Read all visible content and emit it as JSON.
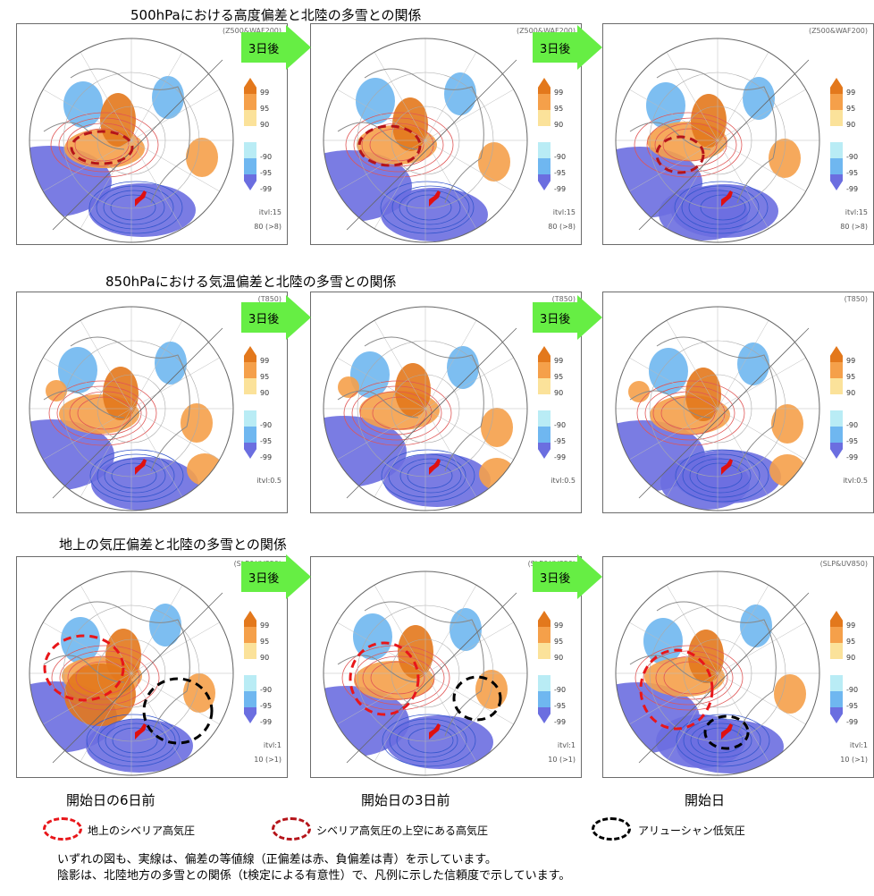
{
  "rows": [
    {
      "title": "500hPaにおける高度偏差と北陸の多雪との関係",
      "tag": "(Z500&WAF200)",
      "itvl": "itvl:15",
      "vec": "80 (>8)"
    },
    {
      "title": "850hPaにおける気温偏差と北陸の多雪との関係",
      "tag": "(T850)",
      "itvl": "itvl:0.5",
      "vec": ""
    },
    {
      "title": "地上の気圧偏差と北陸の多雪との関係",
      "tag": "(SLP&UV850)",
      "itvl": "itvl:1",
      "vec": "10 (>1)"
    }
  ],
  "arrow_label": "3日後",
  "legend_ticks": [
    "99",
    "95",
    "90",
    "-90",
    "-95",
    "-99"
  ],
  "colors": {
    "pos99": "#e3781c",
    "pos95": "#f5a04a",
    "pos90": "#fbe29a",
    "neg90": "#b9ecf5",
    "neg95": "#6fb7f0",
    "neg99": "#6b6ee0",
    "arrow": "#66ee44"
  },
  "captions": [
    "開始日の6日前",
    "開始日の3日前",
    "開始日"
  ],
  "legend_items": [
    {
      "label": "地上のシベリア高気圧",
      "color": "#e8161a"
    },
    {
      "label": "シベリア高気圧の上空にある高気圧",
      "color": "#b5141a"
    },
    {
      "label": "アリューシャン低気圧",
      "color": "#000000"
    }
  ],
  "notes": [
    "いずれの図も、実線は、偏差の等値線（正偏差は赤、負偏差は青）を示しています。",
    "陰影は、北陸地方の多雪との関係（t検定による有意性）で、凡例に示した信頼度で示しています。"
  ]
}
